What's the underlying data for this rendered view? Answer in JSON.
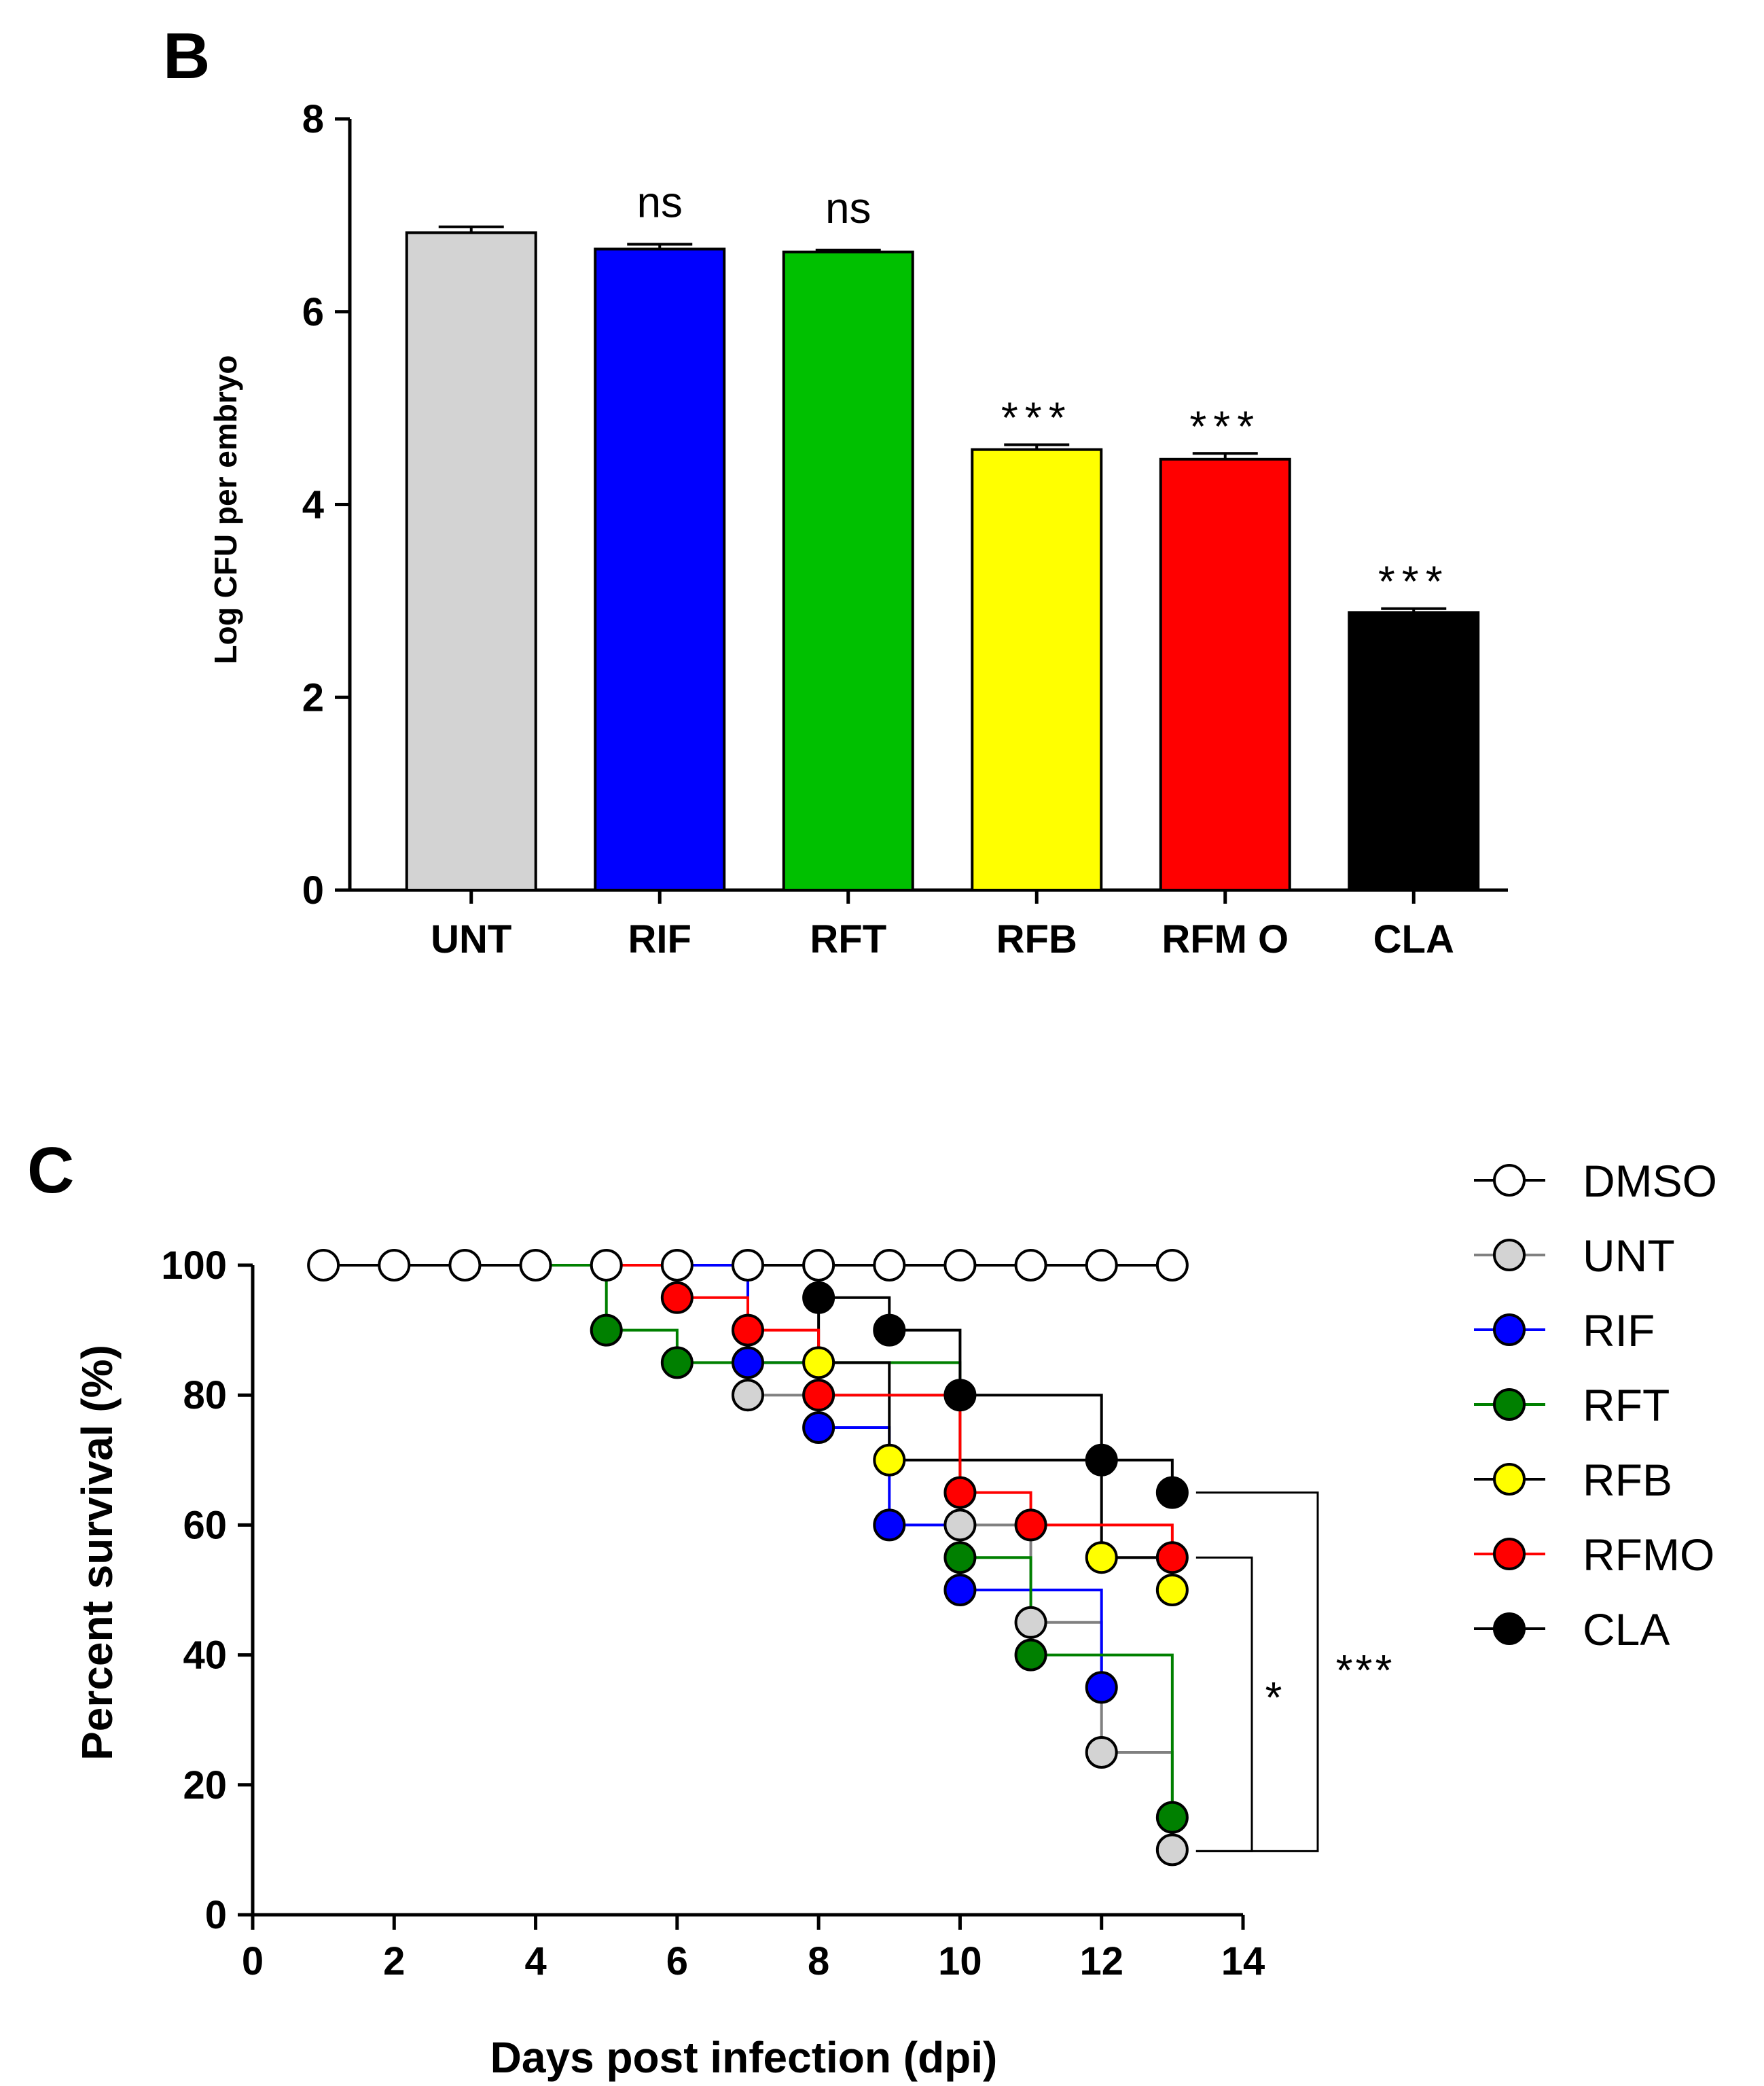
{
  "chart_data": [
    {
      "panel": "B",
      "type": "bar",
      "title": "",
      "xlabel": "",
      "ylabel": "Log CFU per embryo",
      "ylim": [
        0,
        8
      ],
      "yticks": [
        "0",
        "2",
        "4",
        "6",
        "8"
      ],
      "categories": [
        "UNT",
        "RIF",
        "RFT",
        "RFB",
        "RFM O",
        "CLA"
      ],
      "values": [
        6.82,
        6.65,
        6.62,
        4.57,
        4.47,
        2.88
      ],
      "errors": [
        0.06,
        0.05,
        0.02,
        0.05,
        0.06,
        0.04
      ],
      "colors": [
        "#d3d3d3",
        "#0000ff",
        "#00c000",
        "#ffff00",
        "#ff0000",
        "#000000"
      ],
      "annotations": [
        "",
        "ns",
        "ns",
        "***",
        "***",
        "***"
      ]
    },
    {
      "panel": "C",
      "type": "line",
      "title": "",
      "xlabel": "Days post infection (dpi)",
      "ylabel": "Percent survival (%)",
      "xlim": [
        0,
        14
      ],
      "ylim": [
        0,
        100
      ],
      "xticks": [
        "0",
        "2",
        "4",
        "6",
        "8",
        "10",
        "12",
        "14"
      ],
      "yticks": [
        "0",
        "20",
        "40",
        "60",
        "80",
        "100"
      ],
      "series": [
        {
          "name": "DMSO",
          "color": "#ffffff",
          "line": "#000000",
          "points": [
            [
              1,
              100
            ],
            [
              2,
              100
            ],
            [
              3,
              100
            ],
            [
              4,
              100
            ],
            [
              5,
              100
            ],
            [
              6,
              100
            ],
            [
              7,
              100
            ],
            [
              8,
              100
            ],
            [
              9,
              100
            ],
            [
              10,
              100
            ],
            [
              11,
              100
            ],
            [
              12,
              100
            ],
            [
              13,
              100
            ]
          ]
        },
        {
          "name": "UNT",
          "color": "#d3d3d3",
          "line": "#808080",
          "points": [
            [
              7,
              80
            ],
            [
              10,
              60
            ],
            [
              11,
              45
            ],
            [
              12,
              25
            ],
            [
              13,
              10
            ]
          ]
        },
        {
          "name": "RIF",
          "color": "#0000ff",
          "line": "#0000ff",
          "points": [
            [
              7,
              85
            ],
            [
              8,
              75
            ],
            [
              9,
              60
            ],
            [
              10,
              50
            ],
            [
              12,
              35
            ]
          ]
        },
        {
          "name": "RFT",
          "color": "#008000",
          "line": "#008000",
          "points": [
            [
              5,
              90
            ],
            [
              6,
              85
            ],
            [
              10,
              55
            ],
            [
              11,
              40
            ],
            [
              13,
              15
            ]
          ]
        },
        {
          "name": "RFB",
          "color": "#ffff00",
          "line": "#000000",
          "points": [
            [
              8,
              85
            ],
            [
              9,
              70
            ],
            [
              12,
              55
            ],
            [
              13,
              50
            ]
          ]
        },
        {
          "name": "RFMO",
          "color": "#ff0000",
          "line": "#ff0000",
          "points": [
            [
              6,
              95
            ],
            [
              7,
              90
            ],
            [
              8,
              80
            ],
            [
              10,
              65
            ],
            [
              11,
              60
            ],
            [
              13,
              55
            ]
          ]
        },
        {
          "name": "CLA",
          "color": "#000000",
          "line": "#000000",
          "points": [
            [
              8,
              95
            ],
            [
              9,
              90
            ],
            [
              10,
              80
            ],
            [
              12,
              70
            ],
            [
              13,
              65
            ]
          ]
        }
      ],
      "significance": [
        "*",
        "***"
      ]
    }
  ],
  "panels": {
    "b_letter": "B",
    "c_letter": "C"
  }
}
